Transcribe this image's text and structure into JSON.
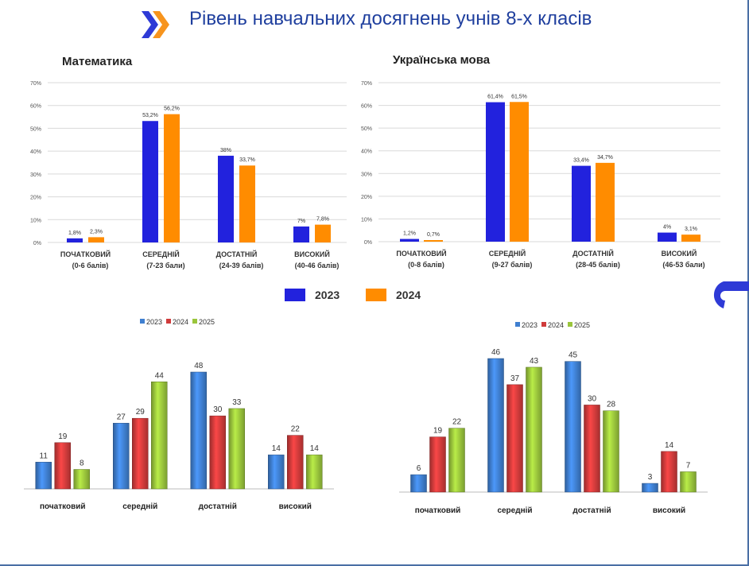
{
  "page": {
    "title": "Рівень навчальних досягнень учнів 8-х класів",
    "colors": {
      "accent_blue": "#1f3f9e",
      "logo_orange": "#f7941d",
      "logo_blue": "#2e3ad6"
    }
  },
  "top_legend": [
    {
      "label": "2023",
      "color": "#2222dd"
    },
    {
      "label": "2024",
      "color": "#ff8c00"
    }
  ],
  "chart_data": [
    {
      "type": "bar",
      "title": "Математика",
      "categories": [
        [
          "ПОЧАТКОВИЙ",
          "(0-6 балів)"
        ],
        [
          "СЕРЕДНІЙ",
          "(7-23 бали)"
        ],
        [
          "ДОСТАТНІЙ",
          "(24-39 балів)"
        ],
        [
          "ВИСОКИЙ",
          "(40-46 балів)"
        ]
      ],
      "series": [
        {
          "name": "2023",
          "color": "#2222dd",
          "values": [
            1.8,
            53.2,
            38,
            7
          ],
          "labels": [
            "1,8%",
            "53,2%",
            "38%",
            "7%"
          ]
        },
        {
          "name": "2024",
          "color": "#ff8c00",
          "values": [
            2.3,
            56.2,
            33.7,
            7.8
          ],
          "labels": [
            "2,3%",
            "56,2%",
            "33,7%",
            "7,8%"
          ]
        }
      ],
      "ylim": [
        0,
        70
      ],
      "yticks": [
        "0%",
        "10%",
        "20%",
        "30%",
        "40%",
        "50%",
        "60%",
        "70%"
      ],
      "grid": true
    },
    {
      "type": "bar",
      "title": "Українська мова",
      "categories": [
        [
          "ПОЧАТКОВИЙ",
          "(0-8 балів)"
        ],
        [
          "СЕРЕДНІЙ",
          "(9-27 балів)"
        ],
        [
          "ДОСТАТНІЙ",
          "(28-45 балів)"
        ],
        [
          "ВИСОКИЙ",
          "(46-53 бали)"
        ]
      ],
      "series": [
        {
          "name": "2023",
          "color": "#2222dd",
          "values": [
            1.2,
            61.4,
            33.4,
            4
          ],
          "labels": [
            "1,2%",
            "61,4%",
            "33,4%",
            "4%"
          ]
        },
        {
          "name": "2024",
          "color": "#ff8c00",
          "values": [
            0.7,
            61.5,
            34.7,
            3.1
          ],
          "labels": [
            "0,7%",
            "61,5%",
            "34,7%",
            "3,1%"
          ]
        }
      ],
      "ylim": [
        0,
        70
      ],
      "yticks": [
        "0%",
        "10%",
        "20%",
        "30%",
        "40%",
        "50%",
        "60%",
        "70%"
      ],
      "grid": true
    },
    {
      "type": "bar",
      "title": "",
      "categories": [
        "початковий",
        "середній",
        "достатній",
        "високий"
      ],
      "series": [
        {
          "name": "2023",
          "color": "#3f7fd0",
          "values": [
            11,
            27,
            48,
            14
          ]
        },
        {
          "name": "2024",
          "color": "#d03b3b",
          "values": [
            19,
            29,
            30,
            22
          ]
        },
        {
          "name": "2025",
          "color": "#9ac53c",
          "values": [
            8,
            44,
            33,
            14
          ]
        }
      ],
      "ylim": [
        0,
        48
      ],
      "legend": "top-center",
      "grid": false
    },
    {
      "type": "bar",
      "title": "",
      "categories": [
        "початковий",
        "середній",
        "достатній",
        "високий"
      ],
      "series": [
        {
          "name": "2023",
          "color": "#3f7fd0",
          "values": [
            6,
            46,
            45,
            3
          ]
        },
        {
          "name": "2024",
          "color": "#d03b3b",
          "values": [
            19,
            37,
            30,
            14
          ]
        },
        {
          "name": "2025",
          "color": "#9ac53c",
          "values": [
            22,
            43,
            28,
            7
          ]
        }
      ],
      "ylim": [
        0,
        46
      ],
      "legend": "top-center",
      "grid": false
    }
  ]
}
